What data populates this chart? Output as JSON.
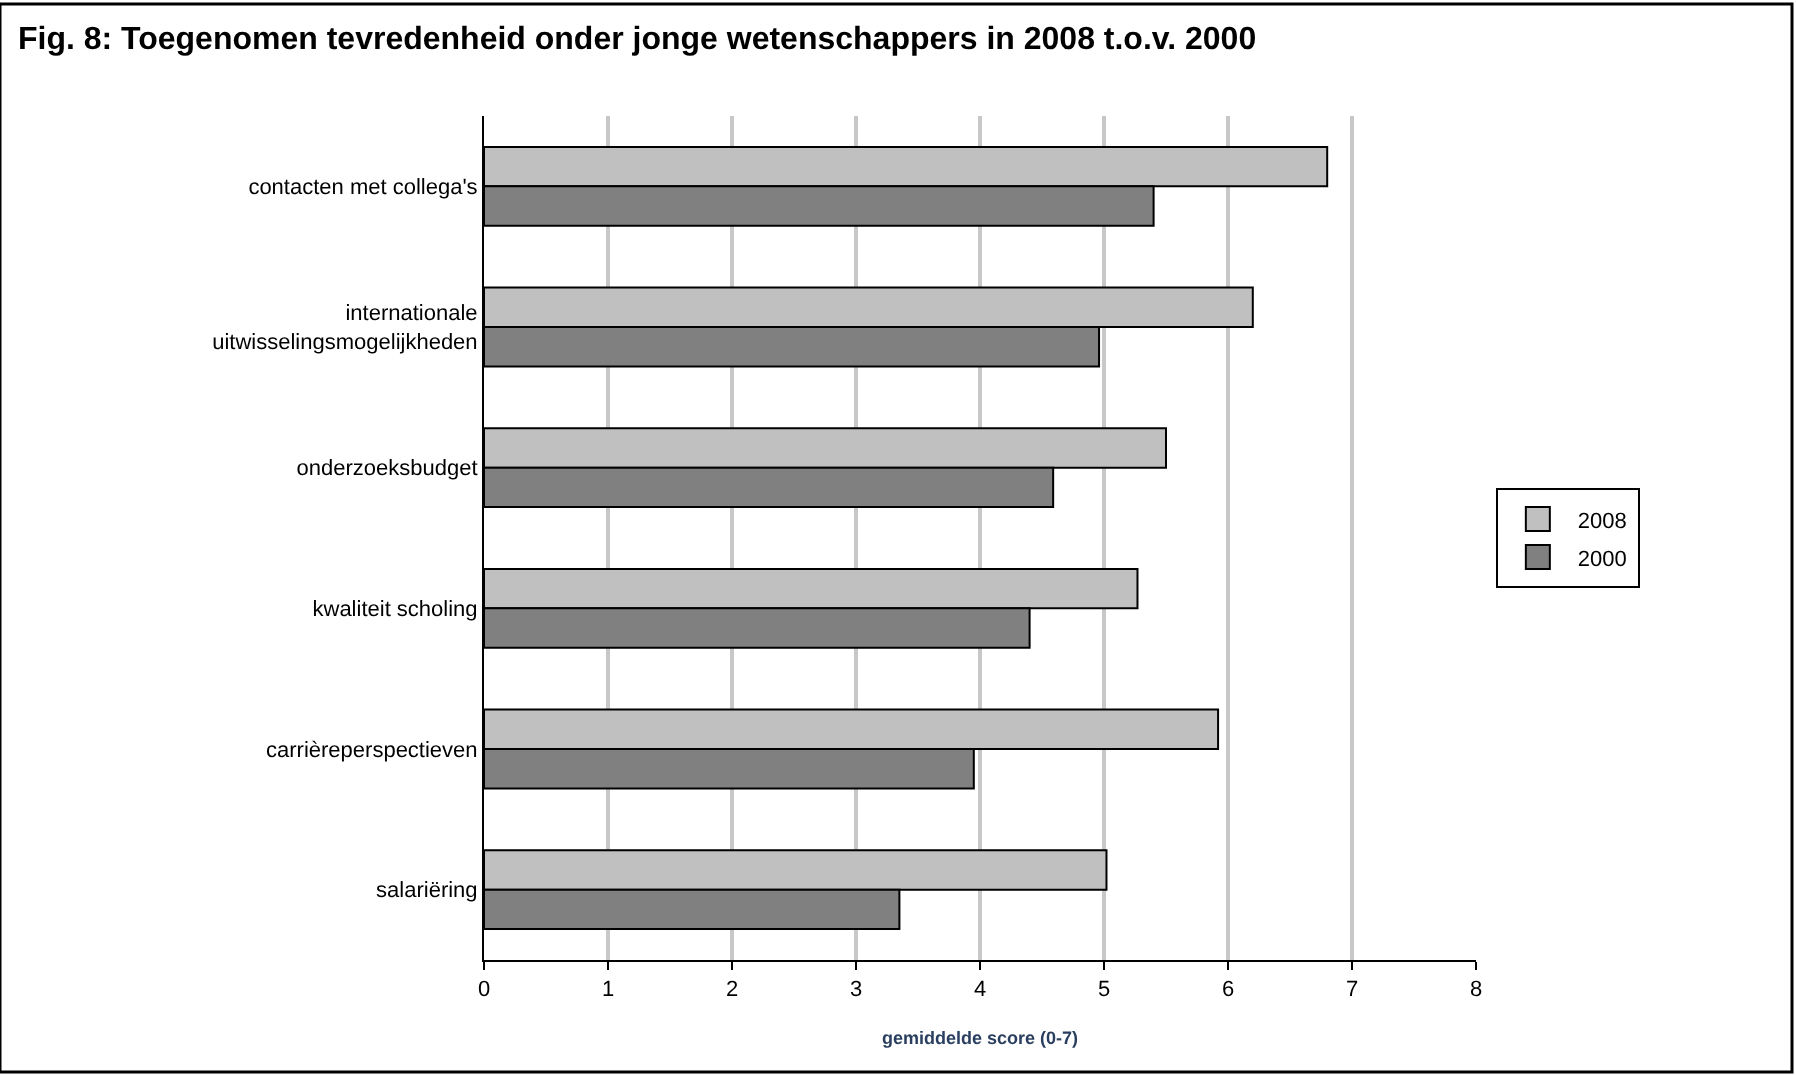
{
  "chart_data": {
    "type": "bar",
    "orientation": "horizontal",
    "title": "Fig. 8: Toegenomen tevredenheid onder jonge wetenschappers in 2008 t.o.v. 2000",
    "xlabel": "gemiddelde score (0-7)",
    "categories": [
      "contacten met collega's",
      "internationale uitwisselingsmogelijkheden",
      "onderzoeksbudget",
      "kwaliteit scholing",
      "carrièreperspectieven",
      "salariëring"
    ],
    "series": [
      {
        "name": "2008",
        "color": "#c0c0c0",
        "values": [
          6.8,
          6.2,
          5.5,
          5.27,
          5.92,
          5.02
        ]
      },
      {
        "name": "2000",
        "color": "#808080",
        "values": [
          5.4,
          4.96,
          4.59,
          4.4,
          3.95,
          3.35
        ]
      }
    ],
    "xlim": [
      0,
      8
    ],
    "xticks": [
      0,
      1,
      2,
      3,
      4,
      5,
      6,
      7,
      8
    ],
    "grid": "x",
    "legend": "right"
  }
}
